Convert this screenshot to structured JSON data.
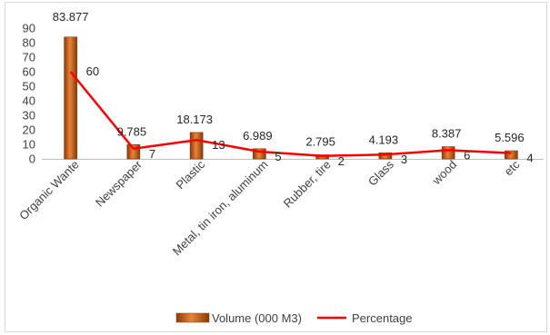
{
  "chart_data": {
    "type": "bar",
    "categories": [
      "Organic Wante",
      "Newspaper",
      "Plastic",
      "Metal, tin iron, aluminum",
      "Rubber, tire",
      "Glass",
      "wood",
      "etc"
    ],
    "series": [
      {
        "name": "Volume (000 M3)",
        "type": "bar",
        "values": [
          83.877,
          9.785,
          18.173,
          6.989,
          2.795,
          4.193,
          8.387,
          5.596
        ],
        "labels": [
          "83.877",
          "9.785",
          "18.173",
          "6.989",
          "2.795",
          "4.193",
          "8.387",
          "5.596"
        ],
        "color": "#c55a11"
      },
      {
        "name": "Percentage",
        "type": "line",
        "values": [
          60,
          7,
          13,
          5,
          2,
          3,
          6,
          4
        ],
        "labels": [
          "60",
          "7",
          "13",
          "5",
          "2",
          "3",
          "6",
          "4"
        ],
        "color": "#ff0000"
      }
    ],
    "yticks": [
      "0",
      "10",
      "20",
      "30",
      "40",
      "50",
      "60",
      "70",
      "80",
      "90"
    ],
    "ylim": [
      0,
      90
    ],
    "grid": false,
    "legend_position": "bottom"
  }
}
